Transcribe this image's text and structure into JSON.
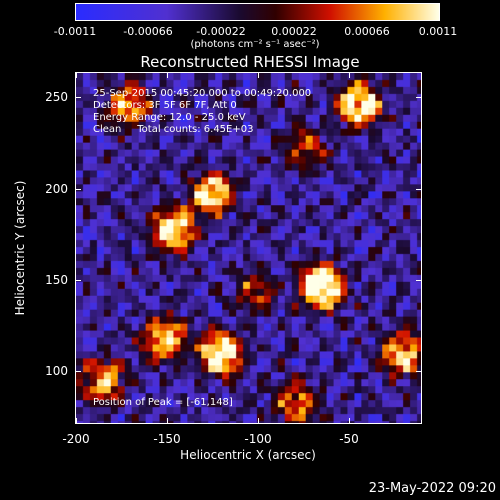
{
  "colorbar": {
    "ticks": [
      "-0.0011",
      "-0.00066",
      "-0.00022",
      "0.00022",
      "0.00066",
      "0.0011"
    ],
    "units": "(photons cm⁻² s⁻¹ asec⁻²)"
  },
  "title": "Reconstructed RHESSI Image",
  "info": {
    "time": "25-Sep-2015 00:45:20.000 to 00:49:20.000",
    "detectors": "Detectors: 3F 5F 6F 7F, Att 0",
    "energy": "Energy Range: 12.0 - 25.0 keV",
    "clean": "Clean     Total counts: 6.45E+03",
    "peak": "Position of Peak = [-61,148]"
  },
  "axes": {
    "xlabel": "Heliocentric X (arcsec)",
    "ylabel": "Heliocentric Y (arcsec)",
    "xticks": [
      "-200",
      "-150",
      "-100",
      "-50"
    ],
    "yticks": [
      "250",
      "200",
      "150",
      "100"
    ]
  },
  "footer": "23-May-2022 09:20",
  "chart_data": {
    "type": "heatmap",
    "title": "Reconstructed RHESSI Image",
    "xlabel": "Heliocentric X (arcsec)",
    "ylabel": "Heliocentric Y (arcsec)",
    "xlim": [
      -200,
      -5
    ],
    "ylim": [
      71,
      268
    ],
    "zlim": [
      -0.0011,
      0.0011
    ],
    "colormap": "blue-purple-black-red-yellow-white",
    "sources": [
      {
        "x": -61,
        "y": 148,
        "strength": 1.0
      },
      {
        "x": -40,
        "y": 250,
        "strength": 0.85
      },
      {
        "x": -145,
        "y": 180,
        "strength": 0.8
      },
      {
        "x": -123,
        "y": 200,
        "strength": 0.75
      },
      {
        "x": -170,
        "y": 250,
        "strength": 0.6
      },
      {
        "x": -150,
        "y": 118,
        "strength": 0.7
      },
      {
        "x": -118,
        "y": 110,
        "strength": 0.85
      },
      {
        "x": -15,
        "y": 110,
        "strength": 0.7
      },
      {
        "x": -185,
        "y": 95,
        "strength": 0.6
      },
      {
        "x": -75,
        "y": 82,
        "strength": 0.55
      },
      {
        "x": -100,
        "y": 145,
        "strength": 0.4
      },
      {
        "x": -70,
        "y": 225,
        "strength": 0.4
      }
    ]
  }
}
